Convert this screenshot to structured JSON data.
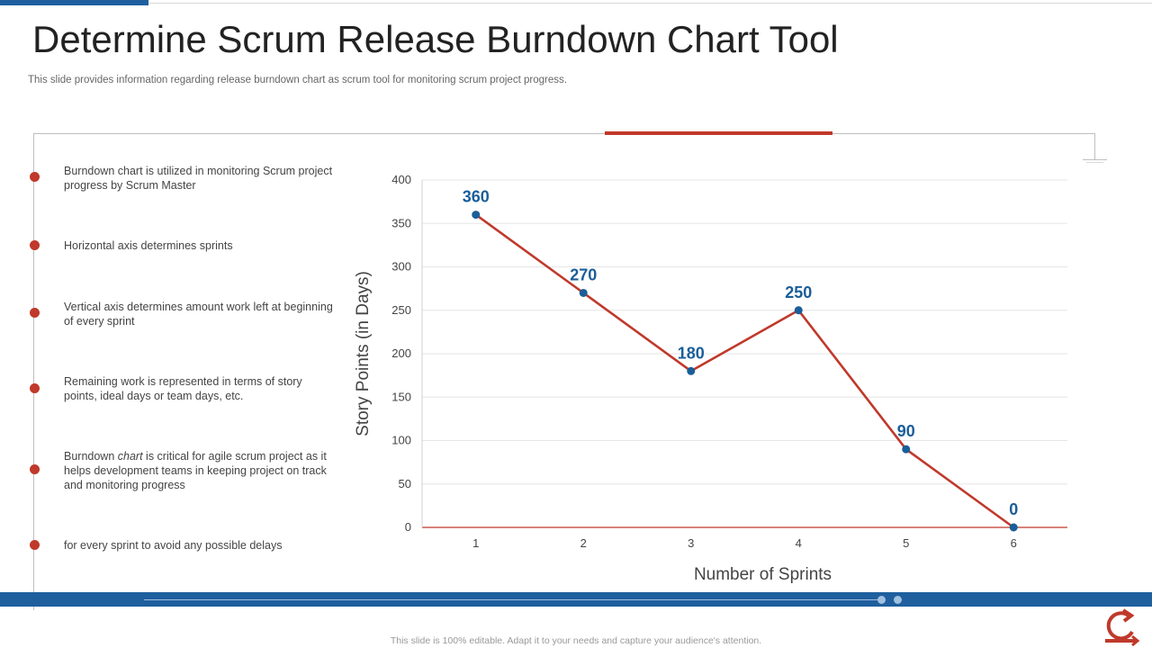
{
  "header": {
    "title": "Determine Scrum Release Burndown Chart Tool",
    "subtitle": "This slide provides information regarding release burndown chart as scrum tool for monitoring scrum project progress."
  },
  "bullets": [
    {
      "pre": "Burndown chart is utilized in monitoring Scrum project progress by Scrum Master",
      "em": "",
      "post": ""
    },
    {
      "pre": "Horizontal axis determines sprints",
      "em": "",
      "post": ""
    },
    {
      "pre": "Vertical axis determines amount work left at beginning of every sprint",
      "em": "",
      "post": ""
    },
    {
      "pre": "Remaining work is represented  in terms of story points, ideal days or team days, etc.",
      "em": "",
      "post": ""
    },
    {
      "pre": "Burndown ",
      "em": "chart",
      "post": " is critical for agile scrum project as it helps development  teams in keeping project on track and monitoring progress"
    },
    {
      "pre": "for every  sprint to avoid  any possible delays",
      "em": "",
      "post": ""
    }
  ],
  "footer": {
    "text": "This slide is 100% editable. Adapt it to your needs and capture your audience's attention."
  },
  "colors": {
    "accent_red": "#c0392b",
    "accent_blue": "#1f5f9e",
    "label_blue": "#1a5e99"
  },
  "chart_data": {
    "type": "line",
    "categories": [
      "1",
      "2",
      "3",
      "4",
      "5",
      "6"
    ],
    "series": [
      {
        "values": [
          360,
          270,
          180,
          250,
          90,
          0
        ]
      }
    ],
    "data_labels": [
      "360",
      "270",
      "180",
      "250",
      "90",
      "0"
    ],
    "xlabel": "Number  of Sprints",
    "ylabel": "Story Points (in Days)",
    "ylim": [
      0,
      400
    ],
    "yticks": [
      0,
      50,
      100,
      150,
      200,
      250,
      300,
      350,
      400
    ],
    "grid": true,
    "legend": "none"
  }
}
